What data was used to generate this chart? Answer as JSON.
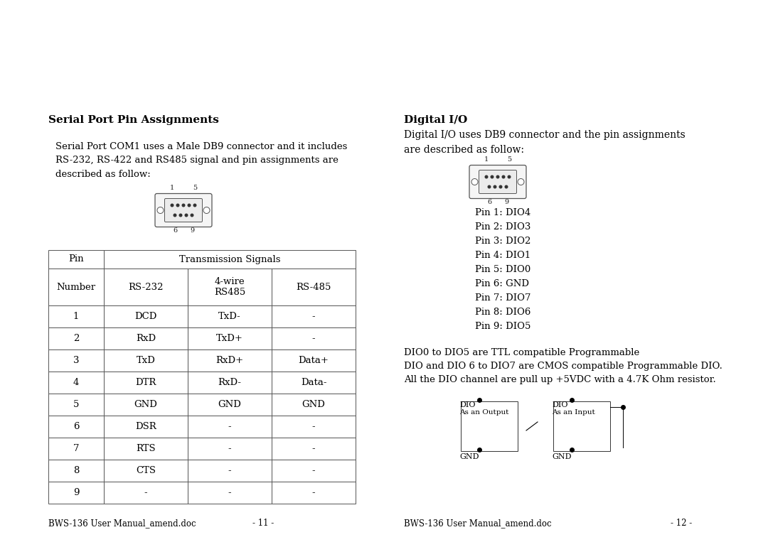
{
  "bg_color": "#ffffff",
  "left_page": {
    "title": "Serial Port Pin Assignments",
    "body_text": "Serial Port COM1 uses a Male DB9 connector and it includes\nRS-232, RS-422 and RS485 signal and pin assignments are\ndescribed as follow:",
    "table_rows": [
      [
        "1",
        "DCD",
        "TxD-",
        "-"
      ],
      [
        "2",
        "RxD",
        "TxD+",
        "-"
      ],
      [
        "3",
        "TxD",
        "RxD+",
        "Data+"
      ],
      [
        "4",
        "DTR",
        "RxD-",
        "Data-"
      ],
      [
        "5",
        "GND",
        "GND",
        "GND"
      ],
      [
        "6",
        "DSR",
        "-",
        "-"
      ],
      [
        "7",
        "RTS",
        "-",
        "-"
      ],
      [
        "8",
        "CTS",
        "-",
        "-"
      ],
      [
        "9",
        "-",
        "-",
        "-"
      ]
    ],
    "footer_left": "BWS-136 User Manual_amend.doc",
    "footer_right": "- 11 -"
  },
  "right_page": {
    "title": "Digital I/O",
    "intro": "Digital I/O uses DB9 connector and the pin assignments\nare described as follow:",
    "pin_list": [
      "Pin 1: DIO4",
      "Pin 2: DIO3",
      "Pin 3: DIO2",
      "Pin 4: DIO1",
      "Pin 5: DIO0",
      "Pin 6: GND",
      "Pin 7: DIO7",
      "Pin 8: DIO6",
      "Pin 9: DIO5"
    ],
    "notes": [
      "DIO0 to DIO5 are TTL compatible Programmable",
      "DIO and DIO 6 to DIO7 are CMOS compatible Programmable DIO.",
      "All the DIO channel are pull up +5VDC with a 4.7K Ohm resistor."
    ],
    "footer_left": "BWS-136 User Manual_amend.doc",
    "footer_right": "- 12 -"
  }
}
